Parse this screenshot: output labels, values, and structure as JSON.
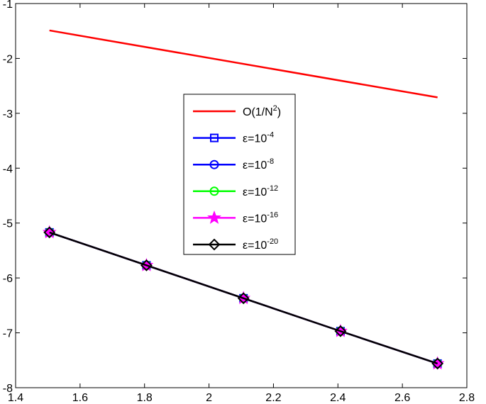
{
  "chart_data": {
    "type": "line",
    "xlim": [
      1.4,
      2.8
    ],
    "ylim": [
      -8,
      -1
    ],
    "x_ticks": [
      "1.4",
      "1.6",
      "1.8",
      "2",
      "2.2",
      "2.4",
      "2.6",
      "2.8"
    ],
    "y_ticks": [
      "-1",
      "-2",
      "-3",
      "-4",
      "-5",
      "-6",
      "-7",
      "-8"
    ],
    "grid": false,
    "legend_position": "center",
    "series": [
      {
        "label_base": "O(1/N",
        "label_sup": "2",
        "label_tail": ")",
        "color": "#ff0000",
        "marker": "none",
        "x": [
          1.505,
          2.709
        ],
        "y": [
          -1.49,
          -2.71
        ]
      },
      {
        "label_base": "ε=10",
        "label_sup": "-4",
        "label_tail": "",
        "color": "#0000ff",
        "marker": "square",
        "x": [
          1.505,
          1.806,
          2.107,
          2.408,
          2.709
        ],
        "y": [
          -5.17,
          -5.77,
          -6.37,
          -6.97,
          -7.56
        ]
      },
      {
        "label_base": "ε=10",
        "label_sup": "-8",
        "label_tail": "",
        "color": "#0000ff",
        "marker": "circle",
        "x": [
          1.505,
          1.806,
          2.107,
          2.408,
          2.709
        ],
        "y": [
          -5.17,
          -5.77,
          -6.37,
          -6.97,
          -7.56
        ]
      },
      {
        "label_base": "ε=10",
        "label_sup": "-12",
        "label_tail": "",
        "color": "#00ff00",
        "marker": "circle",
        "x": [
          1.505,
          1.806,
          2.107,
          2.408,
          2.709
        ],
        "y": [
          -5.17,
          -5.77,
          -6.37,
          -6.97,
          -7.56
        ]
      },
      {
        "label_base": "ε=10",
        "label_sup": "-16",
        "label_tail": "",
        "color": "#ff00ff",
        "marker": "star",
        "x": [
          1.505,
          1.806,
          2.107,
          2.408,
          2.709
        ],
        "y": [
          -5.17,
          -5.77,
          -6.37,
          -6.97,
          -7.56
        ]
      },
      {
        "label_base": "ε=10",
        "label_sup": "-20",
        "label_tail": "",
        "color": "#000000",
        "marker": "diamond",
        "x": [
          1.505,
          1.806,
          2.107,
          2.408,
          2.709
        ],
        "y": [
          -5.17,
          -5.77,
          -6.37,
          -6.97,
          -7.56
        ]
      }
    ]
  }
}
